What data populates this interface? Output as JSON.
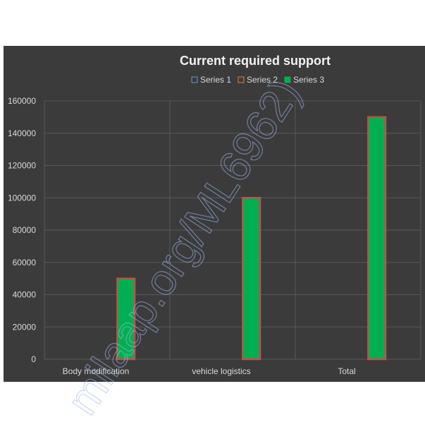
{
  "chart_data": {
    "type": "bar",
    "title": "Current required support",
    "categories": [
      "Body modification",
      "vehicle logistics",
      "Total"
    ],
    "series": [
      {
        "name": "Series 1",
        "values": [
          0,
          0,
          0
        ],
        "color": "#5b9bd5"
      },
      {
        "name": "Series 2",
        "values": [
          0,
          0,
          0
        ],
        "color": "#ed7d31"
      },
      {
        "name": "Series 3",
        "values": [
          50000,
          100000,
          150000
        ],
        "color": "#00b050",
        "border_color": "#c0504d"
      }
    ],
    "ylim": [
      0,
      160000
    ],
    "yticks": [
      0,
      20000,
      40000,
      60000,
      80000,
      100000,
      120000,
      140000,
      160000
    ],
    "ytick_labels": [
      "0",
      "20000",
      "40000",
      "60000",
      "80000",
      "100000",
      "120000",
      "140000",
      "160000"
    ],
    "grid": true,
    "legend_position": "top",
    "background_color": "#3b3b3b",
    "gridline_color": "#595959"
  },
  "watermark": {
    "text": "milaap.org/ML6962)",
    "color": "#9fb8e8"
  }
}
